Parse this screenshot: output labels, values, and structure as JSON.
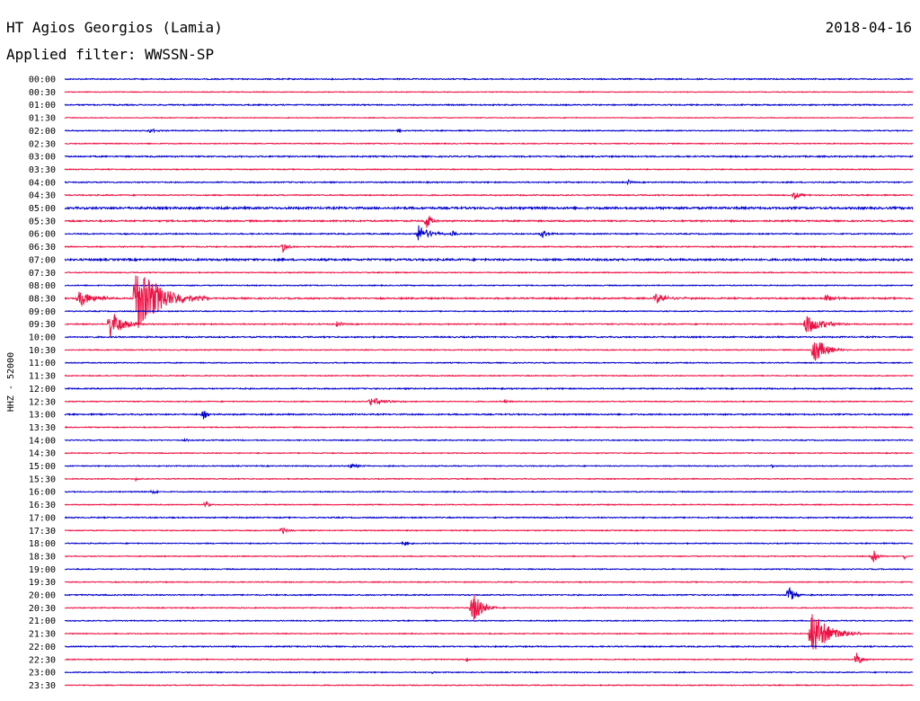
{
  "header": {
    "station": "HT Agios Georgios (Lamia)",
    "date": "2018-04-16",
    "filter": "Applied filter: WWSSN-SP"
  },
  "side_label": "HHZ - 52000",
  "colors": {
    "trace_even": "#0000cc",
    "trace_odd": "#ee1144",
    "text": "#000000",
    "background": "#ffffff"
  },
  "chart_data": {
    "type": "line",
    "title": "HT Agios Georgios (Lamia)",
    "subtitle": "Applied filter: WWSSN-SP",
    "ylabel": "HHZ - 52000",
    "xlabel": "",
    "rows": [
      "00:00",
      "00:30",
      "01:00",
      "01:30",
      "02:00",
      "02:30",
      "03:00",
      "03:30",
      "04:00",
      "04:30",
      "05:00",
      "05:30",
      "06:00",
      "06:30",
      "07:00",
      "07:30",
      "08:00",
      "08:30",
      "09:00",
      "09:30",
      "10:00",
      "10:30",
      "11:00",
      "11:30",
      "12:00",
      "12:30",
      "13:00",
      "13:30",
      "14:00",
      "14:30",
      "15:00",
      "15:30",
      "16:00",
      "16:30",
      "17:00",
      "17:30",
      "18:00",
      "18:30",
      "19:00",
      "19:30",
      "20:00",
      "20:30",
      "21:00",
      "21:30",
      "22:00",
      "22:30",
      "23:00",
      "23:30"
    ],
    "row_minutes": 30,
    "noise": [
      1.2,
      0.8,
      1.2,
      0.8,
      1.0,
      1.0,
      1.4,
      1.0,
      1.2,
      1.2,
      2.2,
      1.6,
      1.2,
      1.2,
      2.0,
      1.0,
      1.0,
      1.6,
      1.0,
      1.2,
      1.4,
      1.0,
      1.0,
      1.0,
      1.2,
      1.0,
      1.4,
      1.0,
      1.0,
      1.0,
      1.0,
      1.0,
      1.0,
      1.0,
      1.2,
      1.0,
      1.0,
      1.0,
      1.0,
      1.0,
      1.2,
      1.0,
      1.0,
      1.0,
      1.2,
      1.0,
      1.0,
      1.0
    ],
    "events": [
      {
        "row": 4,
        "minute": 3.0,
        "amp": 3,
        "dur": 0.6
      },
      {
        "row": 4,
        "minute": 11.8,
        "amp": 4,
        "dur": 0.2
      },
      {
        "row": 8,
        "minute": 19.9,
        "amp": 3,
        "dur": 0.4
      },
      {
        "row": 9,
        "minute": 25.8,
        "amp": 5,
        "dur": 0.6
      },
      {
        "row": 11,
        "minute": 12.8,
        "amp": 12,
        "dur": 0.4
      },
      {
        "row": 12,
        "minute": 12.5,
        "amp": 10,
        "dur": 1.2
      },
      {
        "row": 12,
        "minute": 13.7,
        "amp": 4,
        "dur": 0.4
      },
      {
        "row": 12,
        "minute": 16.9,
        "amp": 6,
        "dur": 0.6
      },
      {
        "row": 13,
        "minute": 7.7,
        "amp": 8,
        "dur": 0.5
      },
      {
        "row": 17,
        "minute": 0.5,
        "amp": 10,
        "dur": 1.4
      },
      {
        "row": 17,
        "minute": 2.5,
        "amp": 40,
        "dur": 2.6
      },
      {
        "row": 17,
        "minute": 20.9,
        "amp": 6,
        "dur": 1.4
      },
      {
        "row": 17,
        "minute": 26.9,
        "amp": 5,
        "dur": 0.8
      },
      {
        "row": 19,
        "minute": 1.6,
        "amp": 18,
        "dur": 1.2
      },
      {
        "row": 19,
        "minute": 9.6,
        "amp": 4,
        "dur": 0.5
      },
      {
        "row": 19,
        "minute": 26.2,
        "amp": 12,
        "dur": 1.6
      },
      {
        "row": 21,
        "minute": 26.5,
        "amp": 16,
        "dur": 1.2
      },
      {
        "row": 25,
        "minute": 10.8,
        "amp": 5,
        "dur": 1.4
      },
      {
        "row": 25,
        "minute": 15.6,
        "amp": 3,
        "dur": 0.3
      },
      {
        "row": 26,
        "minute": 4.9,
        "amp": 8,
        "dur": 0.3
      },
      {
        "row": 28,
        "minute": 4.3,
        "amp": 2,
        "dur": 0.3
      },
      {
        "row": 30,
        "minute": 10.1,
        "amp": 3,
        "dur": 0.7
      },
      {
        "row": 30,
        "minute": 25.0,
        "amp": 2,
        "dur": 0.3
      },
      {
        "row": 31,
        "minute": 2.5,
        "amp": 3,
        "dur": 0.3
      },
      {
        "row": 32,
        "minute": 3.1,
        "amp": 3,
        "dur": 0.5
      },
      {
        "row": 33,
        "minute": 5.0,
        "amp": 4,
        "dur": 0.4
      },
      {
        "row": 35,
        "minute": 7.7,
        "amp": 5,
        "dur": 0.5
      },
      {
        "row": 36,
        "minute": 12.0,
        "amp": 4,
        "dur": 0.4
      },
      {
        "row": 37,
        "minute": 28.6,
        "amp": 8,
        "dur": 0.4
      },
      {
        "row": 37,
        "minute": 29.7,
        "amp": 4,
        "dur": 0.2
      },
      {
        "row": 40,
        "minute": 25.6,
        "amp": 11,
        "dur": 0.6
      },
      {
        "row": 41,
        "minute": 14.4,
        "amp": 22,
        "dur": 0.9
      },
      {
        "row": 43,
        "minute": 26.4,
        "amp": 26,
        "dur": 1.8
      },
      {
        "row": 45,
        "minute": 14.2,
        "amp": 3,
        "dur": 0.3
      },
      {
        "row": 45,
        "minute": 28.0,
        "amp": 9,
        "dur": 0.5
      },
      {
        "row": 46,
        "minute": 13.0,
        "amp": 2,
        "dur": 0.2
      }
    ]
  }
}
